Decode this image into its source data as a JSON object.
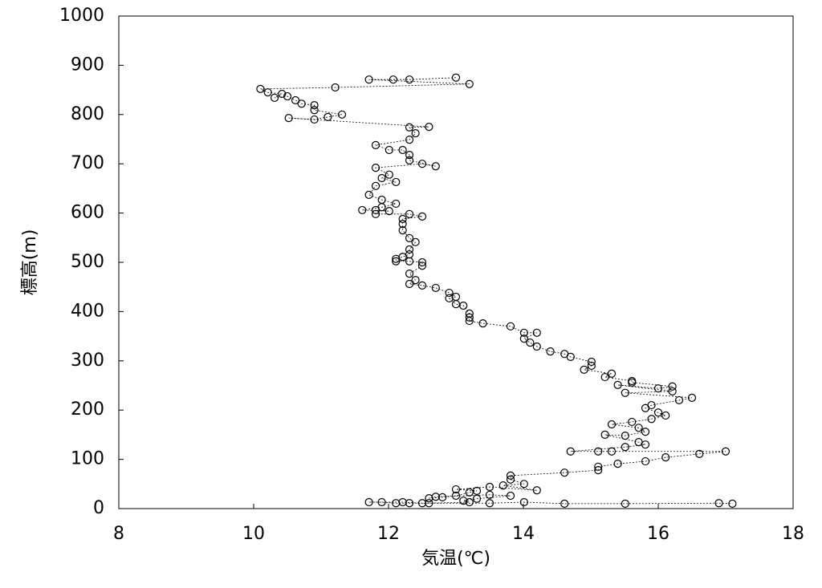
{
  "chart_data": {
    "type": "line",
    "xlabel": "気温(℃)",
    "ylabel": "標高(m)",
    "x": [
      13.0,
      12.31,
      12.07,
      11.71,
      13.2,
      11.21,
      10.1,
      10.21,
      10.42,
      10.31,
      10.5,
      10.62,
      10.71,
      10.9,
      10.9,
      11.31,
      11.1,
      10.9,
      10.52,
      12.6,
      12.31,
      12.4,
      12.31,
      11.81,
      12.01,
      12.21,
      12.31,
      12.31,
      12.7,
      12.5,
      11.81,
      12.01,
      11.9,
      12.11,
      11.81,
      11.71,
      11.9,
      12.11,
      11.9,
      11.61,
      12.01,
      11.81,
      11.81,
      12.31,
      12.5,
      12.21,
      12.21,
      12.21,
      12.31,
      12.4,
      12.31,
      12.31,
      12.21,
      12.11,
      12.11,
      12.31,
      12.5,
      12.5,
      12.31,
      12.4,
      12.31,
      12.5,
      12.7,
      12.9,
      13.0,
      12.9,
      13.0,
      13.11,
      13.2,
      13.2,
      13.2,
      13.4,
      13.81,
      14.01,
      14.2,
      14.01,
      14.1,
      14.2,
      14.4,
      14.61,
      14.7,
      15.01,
      15.01,
      14.9,
      15.31,
      15.21,
      15.61,
      15.61,
      16.21,
      16.0,
      15.4,
      16.21,
      15.51,
      16.5,
      16.31,
      15.9,
      15.81,
      16.0,
      16.11,
      15.9,
      15.61,
      15.31,
      15.71,
      15.81,
      15.51,
      15.21,
      15.71,
      15.81,
      15.51,
      14.7,
      15.11,
      15.31,
      17.0,
      16.61,
      16.11,
      15.81,
      15.4,
      15.11,
      15.11,
      14.61,
      13.81,
      13.81,
      14.01,
      13.7,
      14.2,
      13.5,
      13.0,
      13.31,
      13.2,
      13.0,
      12.8,
      12.6,
      12.7,
      13.5,
      13.81,
      13.31,
      13.11,
      13.2,
      12.6,
      12.31,
      12.11,
      11.9,
      11.71,
      12.21,
      12.5,
      13.5,
      14.01,
      14.61,
      15.51,
      16.9,
      17.1
    ],
    "values": [
      875,
      871,
      871,
      871,
      862,
      855,
      852,
      845,
      842,
      834,
      837,
      829,
      822,
      819,
      809,
      800,
      795,
      790,
      793,
      775,
      774,
      762,
      749,
      738,
      728,
      728,
      718,
      707,
      695,
      700,
      692,
      678,
      671,
      663,
      655,
      637,
      627,
      619,
      612,
      606,
      604,
      606,
      598,
      598,
      593,
      588,
      578,
      565,
      549,
      541,
      526,
      516,
      511,
      507,
      502,
      502,
      500,
      493,
      477,
      464,
      456,
      453,
      448,
      438,
      430,
      427,
      415,
      412,
      396,
      388,
      381,
      376,
      370,
      357,
      357,
      345,
      337,
      329,
      319,
      314,
      308,
      298,
      290,
      282,
      274,
      267,
      259,
      256,
      248,
      244,
      251,
      238,
      235,
      225,
      220,
      210,
      204,
      195,
      189,
      182,
      176,
      171,
      164,
      156,
      148,
      150,
      135,
      130,
      125,
      116,
      116,
      116,
      116,
      111,
      104,
      96,
      91,
      85,
      78,
      73,
      67,
      59,
      50,
      47,
      37,
      44,
      39,
      36,
      33,
      26,
      23,
      21,
      24,
      28,
      26,
      20,
      16,
      13,
      11,
      11,
      11,
      13,
      13,
      13,
      11,
      11,
      13,
      10,
      10,
      11,
      10
    ],
    "xlim": [
      8,
      18
    ],
    "xticks": [
      8,
      10,
      12,
      14,
      16,
      18
    ],
    "ylim": [
      0,
      1000
    ],
    "yticks": [
      0,
      100,
      200,
      300,
      400,
      500,
      600,
      700,
      800,
      900,
      1000
    ],
    "color": "#000000"
  }
}
